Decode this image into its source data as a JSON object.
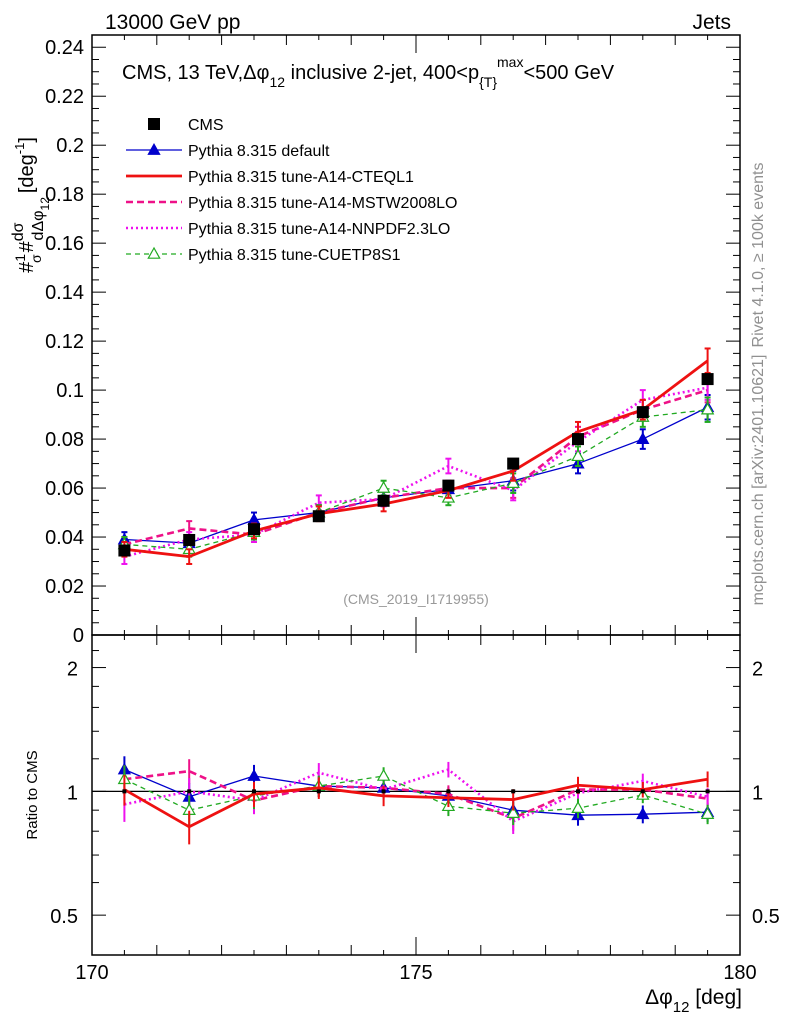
{
  "header": {
    "beam": "13000 GeV pp",
    "group": "Jets"
  },
  "side_labels": {
    "rivet": "Rivet 4.1.0, ≥ 100k events",
    "mcplots": "mcplots.cern.ch [arXiv:2401.10621]"
  },
  "chart_data": {
    "type": "line",
    "title": "CMS, 13 TeV,Δφ₁₂ inclusive 2-jet, 400<p{T}max<500 GeV",
    "title_parts": {
      "main": "CMS, 13 TeV,Δφ",
      "sub1": "12",
      "mid": " inclusive 2-jet, 400<p",
      "sub2": "{T}",
      "sup": "max",
      "end": "<500 GeV"
    },
    "ylabel_parts": {
      "a": "#",
      "frac": "1",
      "denom": "σ",
      "b": "#",
      "num2": "dσ",
      "den2": "dΔφ",
      "den2sub": "12",
      "unit": "[deg",
      "unitsup": "-1",
      "unitend": "]"
    },
    "xlabel_parts": {
      "a": "Δφ",
      "sub": "12",
      "b": " [deg]"
    },
    "ratio_ylabel": "Ratio to CMS",
    "analysis_id": "(CMS_2019_I1719955)",
    "x": [
      170.5,
      171.5,
      172.5,
      173.5,
      174.5,
      175.5,
      176.5,
      177.5,
      178.5,
      179.5
    ],
    "xlim": [
      170,
      180
    ],
    "ylim": [
      0,
      0.245
    ],
    "ratio_ylim": [
      0.4,
      2.4
    ],
    "main_yticks": [
      0,
      0.02,
      0.04,
      0.06,
      0.08,
      0.1,
      0.12,
      0.14,
      0.16,
      0.18,
      0.2,
      0.22,
      0.24
    ],
    "main_ytick_labels": [
      "0",
      "0.02",
      "0.04",
      "0.06",
      "0.08",
      "0.1",
      "0.12",
      "0.14",
      "0.16",
      "0.18",
      "0.2",
      "0.22",
      "0.24"
    ],
    "ratio_yticks": [
      0.5,
      1,
      2
    ],
    "ratio_ytick_labels": [
      "0.5",
      "1",
      "2"
    ],
    "xticks": [
      170,
      175,
      180
    ],
    "xtick_labels": [
      "170",
      "175",
      "180"
    ],
    "series": [
      {
        "name": "CMS",
        "color": "#000000",
        "style": "data",
        "values": [
          0.0345,
          0.0388,
          0.0432,
          0.0485,
          0.0548,
          0.061,
          0.07,
          0.08,
          0.091,
          0.1045
        ],
        "errors": [
          0.001,
          0.001,
          0.001,
          0.001,
          0.001,
          0.0012,
          0.0013,
          0.0014,
          0.0016,
          0.0018
        ]
      },
      {
        "name": "Pythia 8.315 default",
        "color": "#0000cc",
        "style": "solid-thin",
        "marker": "triangle-filled",
        "values": [
          0.039,
          0.0375,
          0.047,
          0.05,
          0.056,
          0.0595,
          0.063,
          0.07,
          0.08,
          0.093
        ],
        "ratio": [
          1.13,
          0.97,
          1.09,
          1.03,
          1.02,
          0.975,
          0.9,
          0.875,
          0.88,
          0.89
        ],
        "errors": [
          0.003,
          0.003,
          0.003,
          0.003,
          0.003,
          0.003,
          0.004,
          0.004,
          0.004,
          0.005
        ]
      },
      {
        "name": "Pythia 8.315 tune-A14-CTEQL1",
        "color": "#ee1111",
        "style": "solid-thick",
        "values": [
          0.035,
          0.032,
          0.0425,
          0.0495,
          0.0535,
          0.059,
          0.067,
          0.083,
          0.092,
          0.112
        ],
        "ratio": [
          1.01,
          0.82,
          0.985,
          1.02,
          0.975,
          0.965,
          0.955,
          1.035,
          1.01,
          1.07
        ],
        "errors": [
          0.003,
          0.003,
          0.003,
          0.003,
          0.003,
          0.003,
          0.004,
          0.004,
          0.004,
          0.005
        ]
      },
      {
        "name": "Pythia 8.315 tune-A14-MSTW2008LO",
        "color": "#ee1188",
        "style": "dashed",
        "values": [
          0.037,
          0.0435,
          0.041,
          0.05,
          0.056,
          0.06,
          0.06,
          0.081,
          0.092,
          0.1
        ],
        "ratio": [
          1.07,
          1.12,
          0.95,
          1.03,
          1.02,
          0.985,
          0.86,
          1.01,
          1.01,
          0.96
        ],
        "errors": [
          0.003,
          0.003,
          0.003,
          0.003,
          0.003,
          0.003,
          0.004,
          0.004,
          0.004,
          0.005
        ]
      },
      {
        "name": "Pythia 8.315 tune-A14-NNPDF2.3LO",
        "color": "#ee11ee",
        "style": "dotted",
        "values": [
          0.032,
          0.039,
          0.041,
          0.054,
          0.0555,
          0.069,
          0.059,
          0.079,
          0.096,
          0.101
        ],
        "ratio": [
          0.93,
          1.0,
          0.95,
          1.11,
          1.01,
          1.13,
          0.845,
          0.99,
          1.06,
          0.97
        ],
        "errors": [
          0.003,
          0.003,
          0.003,
          0.003,
          0.003,
          0.003,
          0.004,
          0.004,
          0.004,
          0.005
        ]
      },
      {
        "name": "Pythia 8.315 tune-CUETP8S1",
        "color": "#22aa22",
        "style": "dashed-thin",
        "marker": "triangle-open",
        "values": [
          0.037,
          0.035,
          0.042,
          0.05,
          0.06,
          0.056,
          0.062,
          0.073,
          0.089,
          0.092
        ],
        "ratio": [
          1.07,
          0.9,
          0.975,
          1.03,
          1.09,
          0.92,
          0.885,
          0.91,
          0.98,
          0.88
        ],
        "errors": [
          0.003,
          0.003,
          0.003,
          0.003,
          0.003,
          0.003,
          0.004,
          0.004,
          0.004,
          0.005
        ]
      }
    ]
  }
}
